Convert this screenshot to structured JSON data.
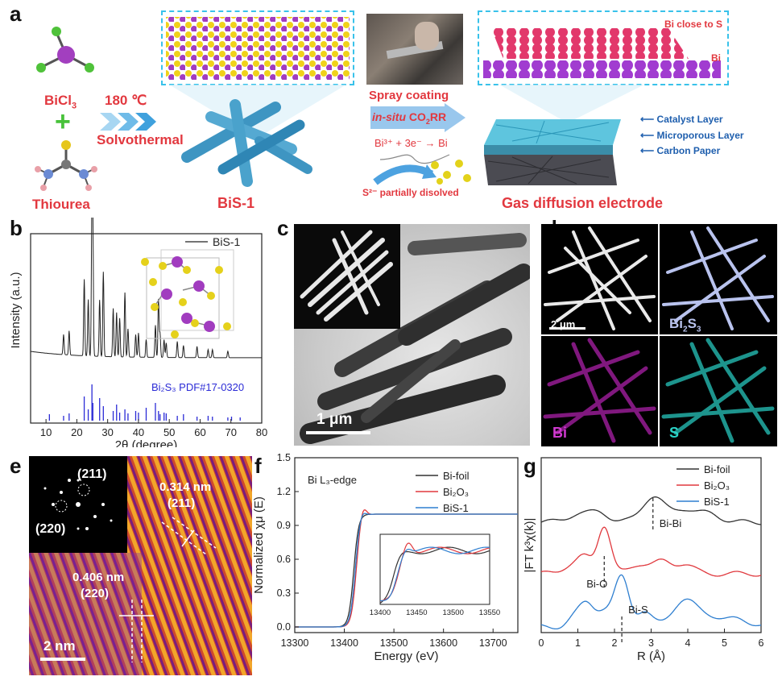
{
  "panel_labels": {
    "a": "a",
    "b": "b",
    "c": "c",
    "d": "d",
    "e": "e",
    "f": "f",
    "g": "g"
  },
  "panel_a": {
    "bicl3": "BiCl",
    "bicl3_sub": "3",
    "thiourea": "Thiourea",
    "temperature": "180 ℃",
    "solvothermal": "Solvothermal",
    "bis1": "BiS-1",
    "spray": "Spray coating",
    "insitu_pre": "in-situ",
    "insitu_post": " CO",
    "insitu_sub": "2",
    "insitu_end": "RR",
    "reaction": "Bi³⁺ + 3e⁻ → Bi",
    "s_dissolved": "S²⁻ partially disolved",
    "gde": "Gas diffusion electrode",
    "bi_close_s": "Bi close to S",
    "bi": "Bi",
    "catalyst_layer": "Catalyst Layer",
    "microporous_layer": "Microporous Layer",
    "carbon_paper": "Carbon Paper"
  },
  "panel_c": {
    "scale": "1 μm"
  },
  "panel_d": {
    "scale": "2 μm",
    "bis3_pre": "Bi",
    "bis3_sub": "2",
    "bis3_mid": "S",
    "bis3_sub2": "3",
    "bi": "Bi",
    "s": "S"
  },
  "panel_e": {
    "fft1": "(211)",
    "fft2": "(220)",
    "d1": "0.314 nm",
    "d1hkl": "(211)",
    "d2": "0.406 nm",
    "d2hkl": "(220)",
    "scale": "2 nm"
  },
  "chart_data": [
    {
      "panel": "b",
      "type": "line",
      "xlabel": "2θ (degree)",
      "ylabel": "Intensity (a.u.)",
      "xlim": [
        5,
        80
      ],
      "xticks": [
        "10",
        "20",
        "30",
        "40",
        "50",
        "60",
        "70",
        "80"
      ],
      "series": [
        {
          "name": "BiS-1",
          "color": "#222222"
        }
      ],
      "reference": {
        "name": "Bi₂S₃ PDF#17-0320",
        "color": "#2b2bd6",
        "peaks": [
          11.1,
          15.7,
          17.5,
          22.4,
          23.7,
          24.9,
          25.2,
          27.4,
          28.6,
          31.8,
          32.9,
          33.9,
          35.6,
          36.6,
          39.1,
          40.0,
          42.5,
          45.5,
          46.5,
          47.0,
          48.3,
          49.0,
          52.6,
          54.6,
          59.0,
          62.6,
          64.0,
          69.0,
          70.2,
          73.0
        ]
      }
    },
    {
      "panel": "f",
      "type": "line",
      "title": "Bi L₃-edge",
      "xlabel": "Energy (eV)",
      "ylabel": "Normalized χμ (E)",
      "xlim": [
        13300,
        13750
      ],
      "ylim": [
        -0.05,
        1.5
      ],
      "xticks": [
        "13300",
        "13400",
        "13500",
        "13600",
        "13700"
      ],
      "yticks": [
        "0.0",
        "0.3",
        "0.6",
        "0.9",
        "1.2",
        "1.5"
      ],
      "series": [
        {
          "name": "Bi-foil",
          "color": "#333333"
        },
        {
          "name": "Bi₂O₃",
          "color": "#e0393e"
        },
        {
          "name": "BiS-1",
          "color": "#2f7fd0"
        }
      ],
      "inset": {
        "xticks": [
          "13400",
          "13450",
          "13500",
          "13550"
        ]
      }
    },
    {
      "panel": "g",
      "type": "line",
      "xlabel": "R (Å)",
      "ylabel": "|FT k³χ(k)|",
      "xlim": [
        0,
        6
      ],
      "xticks": [
        "0",
        "1",
        "2",
        "3",
        "4",
        "5",
        "6"
      ],
      "series": [
        {
          "name": "Bi-foil",
          "color": "#333333"
        },
        {
          "name": "Bi₂O₃",
          "color": "#e0393e"
        },
        {
          "name": "BiS-1",
          "color": "#2f7fd0"
        }
      ],
      "annotations": [
        {
          "text": "Bi-Bi",
          "x": 3.05
        },
        {
          "text": "Bi-O",
          "x": 1.72
        },
        {
          "text": "Bi-S",
          "x": 2.2
        }
      ]
    }
  ]
}
